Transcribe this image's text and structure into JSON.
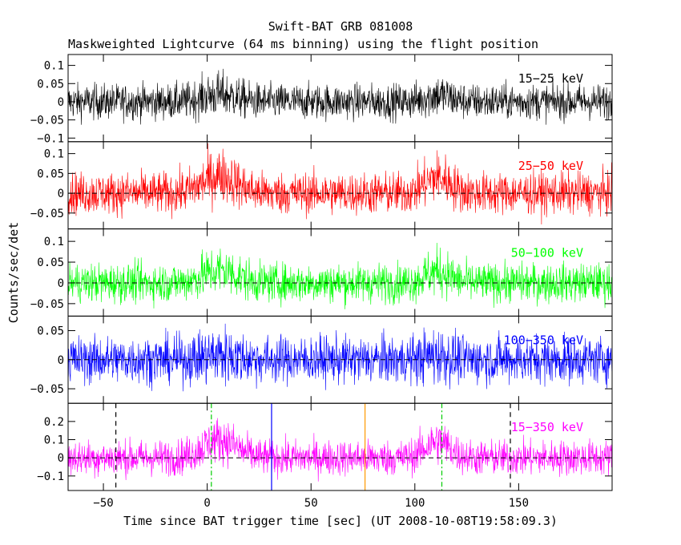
{
  "chart_data": {
    "type": "line",
    "title": "Swift-BAT GRB 081008",
    "subtitle": "Maskweighted Lightcurve (64 ms binning) using the flight position",
    "xlabel": "Time since BAT trigger time [sec] (UT 2008-10-08T19:58:09.3)",
    "ylabel": "Counts/sec/det",
    "xlim": [
      -67,
      195
    ],
    "x_ticks": [
      -50,
      0,
      50,
      100,
      150
    ],
    "x_tick_labels": [
      "−50",
      "0",
      "50",
      "100",
      "150"
    ],
    "bin_seconds": 0.064,
    "pulses": [
      {
        "center": 6,
        "width": 8,
        "weight": 1.0
      },
      {
        "center": 111,
        "width": 6,
        "weight": 0.9
      }
    ],
    "marker_lines": [
      {
        "x": -44,
        "color": "#000000",
        "style": "dashed"
      },
      {
        "x": 2,
        "color": "#00cc00",
        "style": "dashdot"
      },
      {
        "x": 31,
        "color": "#0000ff",
        "style": "solid"
      },
      {
        "x": 76,
        "color": "#ff9900",
        "style": "solid"
      },
      {
        "x": 113,
        "color": "#00cc00",
        "style": "dashdot"
      },
      {
        "x": 146,
        "color": "#000000",
        "style": "dashed"
      }
    ],
    "panels": [
      {
        "name": "15−25 keV",
        "color": "#000000",
        "ylim": [
          -0.11,
          0.13
        ],
        "yticks": [
          -0.1,
          -0.05,
          0,
          0.05,
          0.1
        ],
        "ytick_labels": [
          "−0.1",
          "−0.05",
          "0",
          "0.05",
          "0.1"
        ],
        "noise": 0.024,
        "peak": 0.02,
        "zero_line": false
      },
      {
        "name": "25−50 keV",
        "color": "#ff0000",
        "ylim": [
          -0.09,
          0.13
        ],
        "yticks": [
          -0.05,
          0,
          0.05,
          0.1
        ],
        "ytick_labels": [
          "−0.05",
          "0",
          "0.05",
          "0.1"
        ],
        "noise": 0.026,
        "peak": 0.045,
        "zero_line": true
      },
      {
        "name": "50−100 keV",
        "color": "#00ff00",
        "ylim": [
          -0.08,
          0.13
        ],
        "yticks": [
          -0.05,
          0,
          0.05,
          0.1
        ],
        "ytick_labels": [
          "−0.05",
          "0",
          "0.05",
          "0.1"
        ],
        "noise": 0.023,
        "peak": 0.03,
        "zero_line": true
      },
      {
        "name": "100−350 keV",
        "color": "#0000ff",
        "ylim": [
          -0.075,
          0.075
        ],
        "yticks": [
          -0.05,
          0,
          0.05
        ],
        "ytick_labels": [
          "−0.05",
          "0",
          "0.05"
        ],
        "noise": 0.02,
        "peak": 0.008,
        "zero_line": true
      },
      {
        "name": "15−350 keV",
        "color": "#ff00ff",
        "ylim": [
          -0.18,
          0.3
        ],
        "yticks": [
          -0.1,
          0,
          0.1,
          0.2
        ],
        "ytick_labels": [
          "−0.1",
          "0",
          "0.1",
          "0.2"
        ],
        "noise": 0.048,
        "peak": 0.1,
        "zero_line": true,
        "markers": true
      }
    ]
  }
}
